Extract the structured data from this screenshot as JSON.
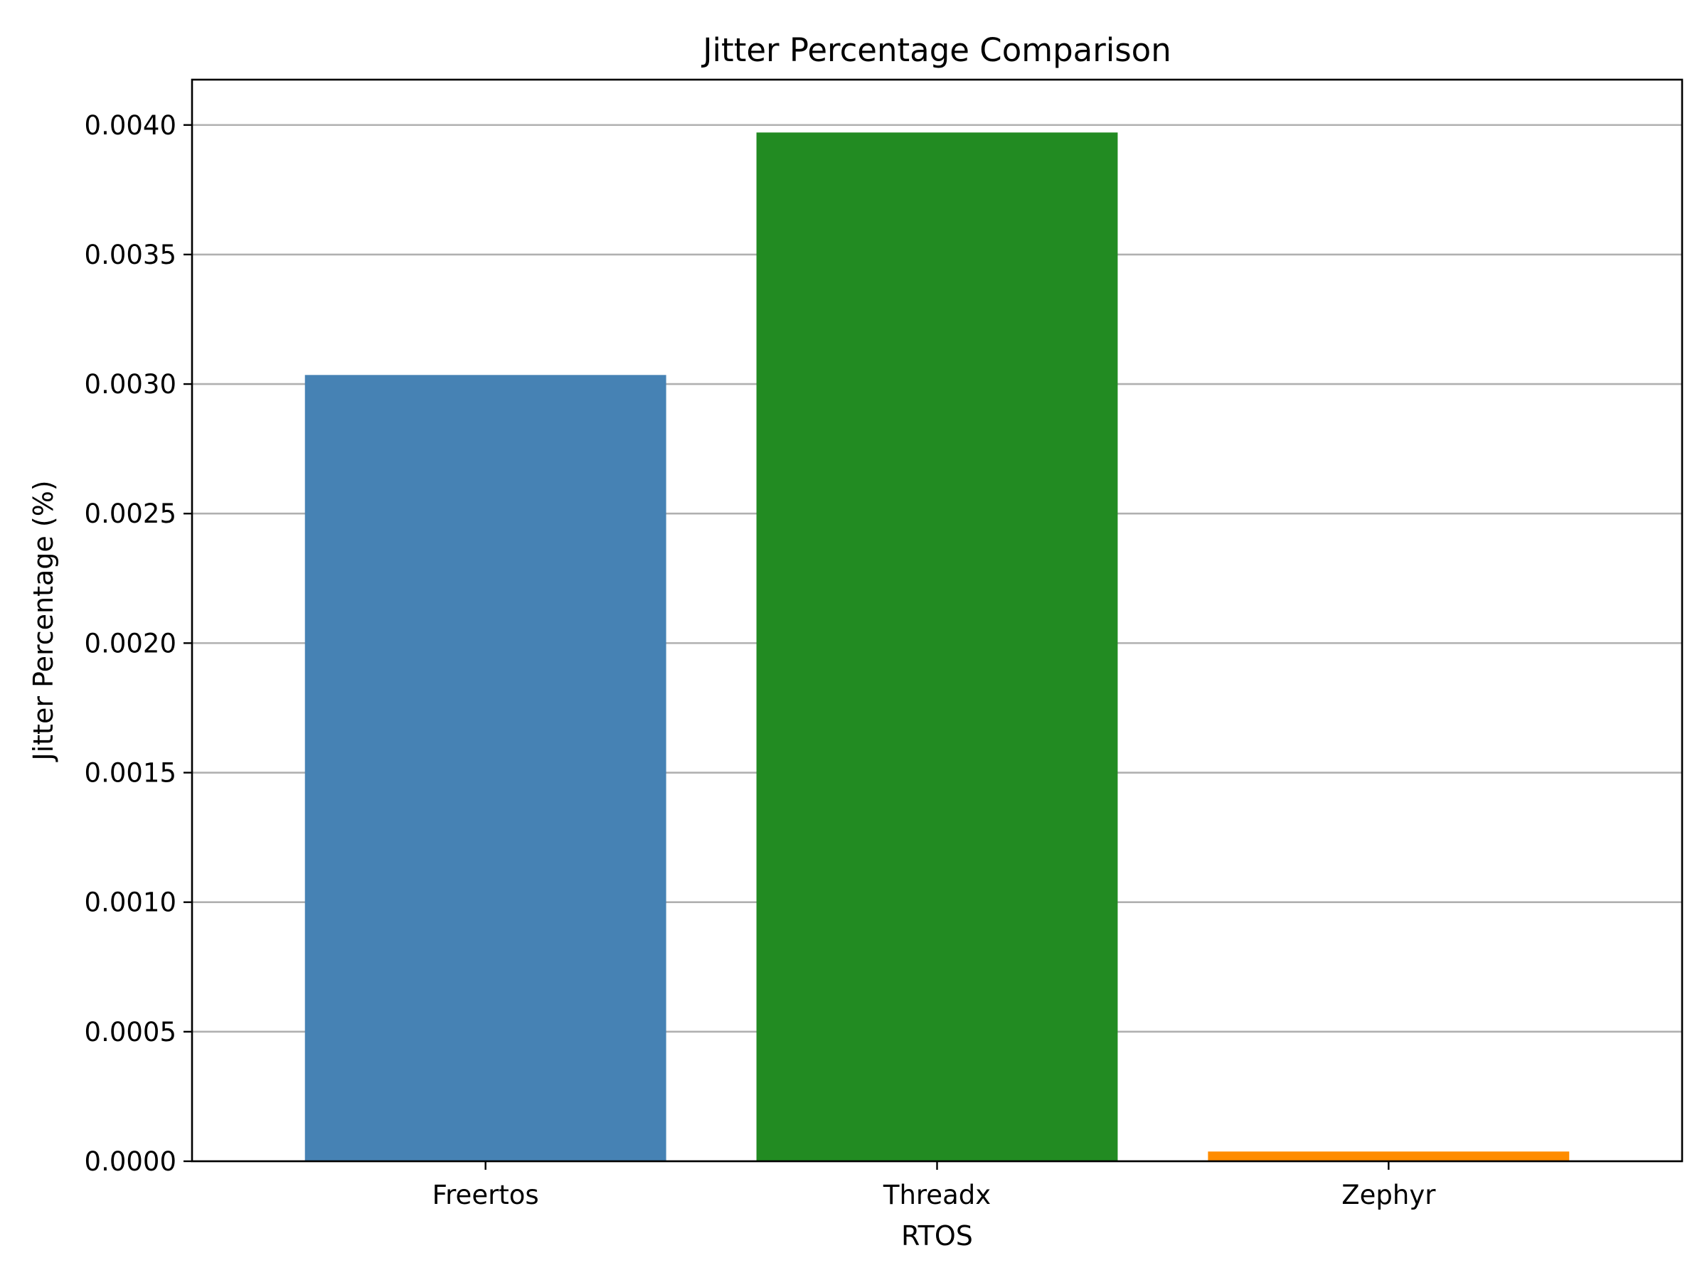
{
  "chart_data": {
    "type": "bar",
    "title": "Jitter Percentage Comparison",
    "xlabel": "RTOS",
    "ylabel": "Jitter Percentage (%)",
    "categories": [
      "Freertos",
      "Threadx",
      "Zephyr"
    ],
    "values": [
      0.003035,
      0.003971,
      3.75e-05
    ],
    "colors": [
      "#4682b4",
      "#228b22",
      "#ff8c00"
    ],
    "ylim": [
      0,
      0.004175
    ],
    "yticks": [
      "0.0000",
      "0.0005",
      "0.0010",
      "0.0015",
      "0.0020",
      "0.0025",
      "0.0030",
      "0.0035",
      "0.0040"
    ],
    "grid": "y-axis major gridlines",
    "legend": "none"
  }
}
